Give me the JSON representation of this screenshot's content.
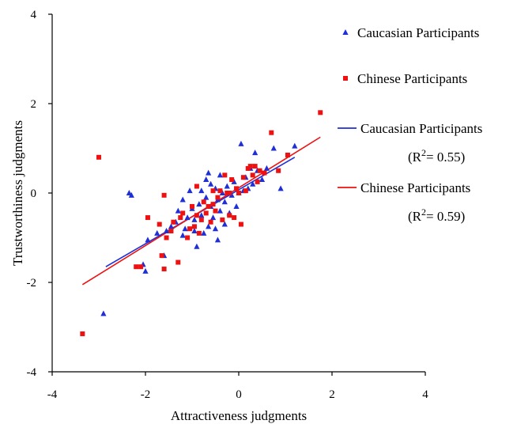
{
  "chart_data": {
    "type": "scatter",
    "title": "",
    "xlabel": "Attractiveness judgments",
    "ylabel": "Trustworthiness judgments",
    "xlim": [
      -4,
      4
    ],
    "ylim": [
      -4,
      4
    ],
    "xticks": [
      "-4",
      "-2",
      "0",
      "2",
      "4"
    ],
    "yticks": [
      "-4",
      "-2",
      "0",
      "2",
      "4"
    ],
    "grid": false,
    "legend_position": "right",
    "series": [
      {
        "name": "Caucasian Participants",
        "marker": "triangle",
        "color": "#1f2fd6",
        "points": [
          [
            -2.35,
            0.0
          ],
          [
            -2.3,
            -0.05
          ],
          [
            -2.9,
            -2.7
          ],
          [
            -2.0,
            -1.75
          ],
          [
            -2.05,
            -1.6
          ],
          [
            -1.95,
            -1.05
          ],
          [
            -1.75,
            -0.9
          ],
          [
            -1.6,
            -1.4
          ],
          [
            -1.55,
            -0.85
          ],
          [
            -1.45,
            -0.75
          ],
          [
            -1.35,
            -0.65
          ],
          [
            -1.3,
            -0.4
          ],
          [
            -1.2,
            -0.95
          ],
          [
            -1.15,
            -0.8
          ],
          [
            -1.1,
            -0.55
          ],
          [
            -1.05,
            0.05
          ],
          [
            -1.0,
            -0.35
          ],
          [
            -0.95,
            -0.6
          ],
          [
            -0.9,
            -1.2
          ],
          [
            -0.85,
            -0.25
          ],
          [
            -0.8,
            -0.5
          ],
          [
            -0.75,
            -0.9
          ],
          [
            -0.7,
            0.3
          ],
          [
            -0.7,
            -0.1
          ],
          [
            -0.65,
            -0.75
          ],
          [
            -0.6,
            -0.3
          ],
          [
            -0.6,
            0.2
          ],
          [
            -0.55,
            -0.55
          ],
          [
            -0.5,
            0.1
          ],
          [
            -0.5,
            -0.8
          ],
          [
            -0.45,
            -0.15
          ],
          [
            -0.45,
            -1.05
          ],
          [
            -0.4,
            -0.4
          ],
          [
            -0.35,
            0.0
          ],
          [
            -0.3,
            -0.2
          ],
          [
            -0.3,
            -0.7
          ],
          [
            -0.25,
            0.15
          ],
          [
            -0.2,
            -0.45
          ],
          [
            -0.15,
            -0.05
          ],
          [
            -0.1,
            0.25
          ],
          [
            -0.05,
            -0.3
          ],
          [
            0.0,
            0.0
          ],
          [
            0.05,
            1.1
          ],
          [
            0.1,
            0.05
          ],
          [
            0.15,
            0.35
          ],
          [
            0.2,
            0.1
          ],
          [
            0.25,
            0.55
          ],
          [
            0.3,
            0.2
          ],
          [
            0.35,
            0.9
          ],
          [
            0.4,
            0.5
          ],
          [
            0.5,
            0.3
          ],
          [
            0.6,
            0.55
          ],
          [
            0.75,
            1.0
          ],
          [
            0.9,
            0.1
          ],
          [
            1.2,
            1.05
          ],
          [
            -0.8,
            0.05
          ],
          [
            -0.65,
            0.45
          ],
          [
            -1.2,
            -0.15
          ],
          [
            -0.95,
            -0.85
          ],
          [
            -0.4,
            0.4
          ]
        ]
      },
      {
        "name": "Chinese Participants",
        "marker": "square",
        "color": "#ee1111",
        "points": [
          [
            -3.35,
            -3.15
          ],
          [
            -3.0,
            0.8
          ],
          [
            -2.2,
            -1.65
          ],
          [
            -2.1,
            -1.65
          ],
          [
            -1.95,
            -0.55
          ],
          [
            -1.7,
            -0.7
          ],
          [
            -1.65,
            -1.4
          ],
          [
            -1.6,
            -1.7
          ],
          [
            -1.6,
            -0.05
          ],
          [
            -1.55,
            -1.0
          ],
          [
            -1.45,
            -0.85
          ],
          [
            -1.4,
            -0.65
          ],
          [
            -1.3,
            -1.55
          ],
          [
            -1.25,
            -0.55
          ],
          [
            -1.2,
            -0.45
          ],
          [
            -1.1,
            -1.0
          ],
          [
            -1.05,
            -0.8
          ],
          [
            -1.0,
            -0.3
          ],
          [
            -0.95,
            -0.75
          ],
          [
            -0.9,
            -0.5
          ],
          [
            -0.85,
            -0.9
          ],
          [
            -0.8,
            -0.6
          ],
          [
            -0.75,
            -0.2
          ],
          [
            -0.7,
            -0.45
          ],
          [
            -0.65,
            -0.3
          ],
          [
            -0.6,
            -0.65
          ],
          [
            -0.55,
            0.05
          ],
          [
            -0.5,
            -0.4
          ],
          [
            -0.45,
            -0.1
          ],
          [
            -0.4,
            0.05
          ],
          [
            -0.35,
            -0.6
          ],
          [
            -0.3,
            0.4
          ],
          [
            -0.25,
            0.0
          ],
          [
            -0.2,
            -0.5
          ],
          [
            -0.15,
            0.3
          ],
          [
            -0.1,
            -0.55
          ],
          [
            -0.05,
            0.1
          ],
          [
            0.0,
            0.0
          ],
          [
            0.05,
            -0.7
          ],
          [
            0.1,
            0.35
          ],
          [
            0.15,
            0.05
          ],
          [
            0.2,
            0.55
          ],
          [
            0.25,
            0.6
          ],
          [
            0.3,
            0.4
          ],
          [
            0.35,
            0.6
          ],
          [
            0.4,
            0.25
          ],
          [
            0.45,
            0.5
          ],
          [
            0.55,
            0.45
          ],
          [
            0.7,
            1.35
          ],
          [
            0.85,
            0.5
          ],
          [
            1.05,
            0.85
          ],
          [
            1.75,
            1.8
          ],
          [
            -0.2,
            0.0
          ],
          [
            -0.55,
            -0.25
          ],
          [
            -0.9,
            0.15
          ]
        ]
      }
    ],
    "trendlines": [
      {
        "name": "Caucasian Participants",
        "r2_text": "(R2= 0.55)",
        "color": "#1f2fd6",
        "x": [
          -2.85,
          1.2
        ],
        "y": [
          -1.65,
          0.8
        ]
      },
      {
        "name": "Chinese Participants",
        "r2_text": "(R2= 0.59)",
        "color": "#ee1111",
        "x": [
          -3.35,
          1.75
        ],
        "y": [
          -2.05,
          1.25
        ]
      }
    ],
    "legend": [
      {
        "kind": "marker",
        "marker": "triangle",
        "color": "#1f2fd6",
        "label": "Caucasian Participants"
      },
      {
        "kind": "marker",
        "marker": "square",
        "color": "#ee1111",
        "label": "Chinese Participants"
      },
      {
        "kind": "line",
        "color": "#1f2fd6",
        "label": "Caucasian Participants",
        "sub": "(R",
        "sup": "2",
        "tail": "= 0.55)"
      },
      {
        "kind": "line",
        "color": "#ee1111",
        "label": "Chinese Participants",
        "sub": "(R",
        "sup": "2",
        "tail": "= 0.59)"
      }
    ]
  }
}
